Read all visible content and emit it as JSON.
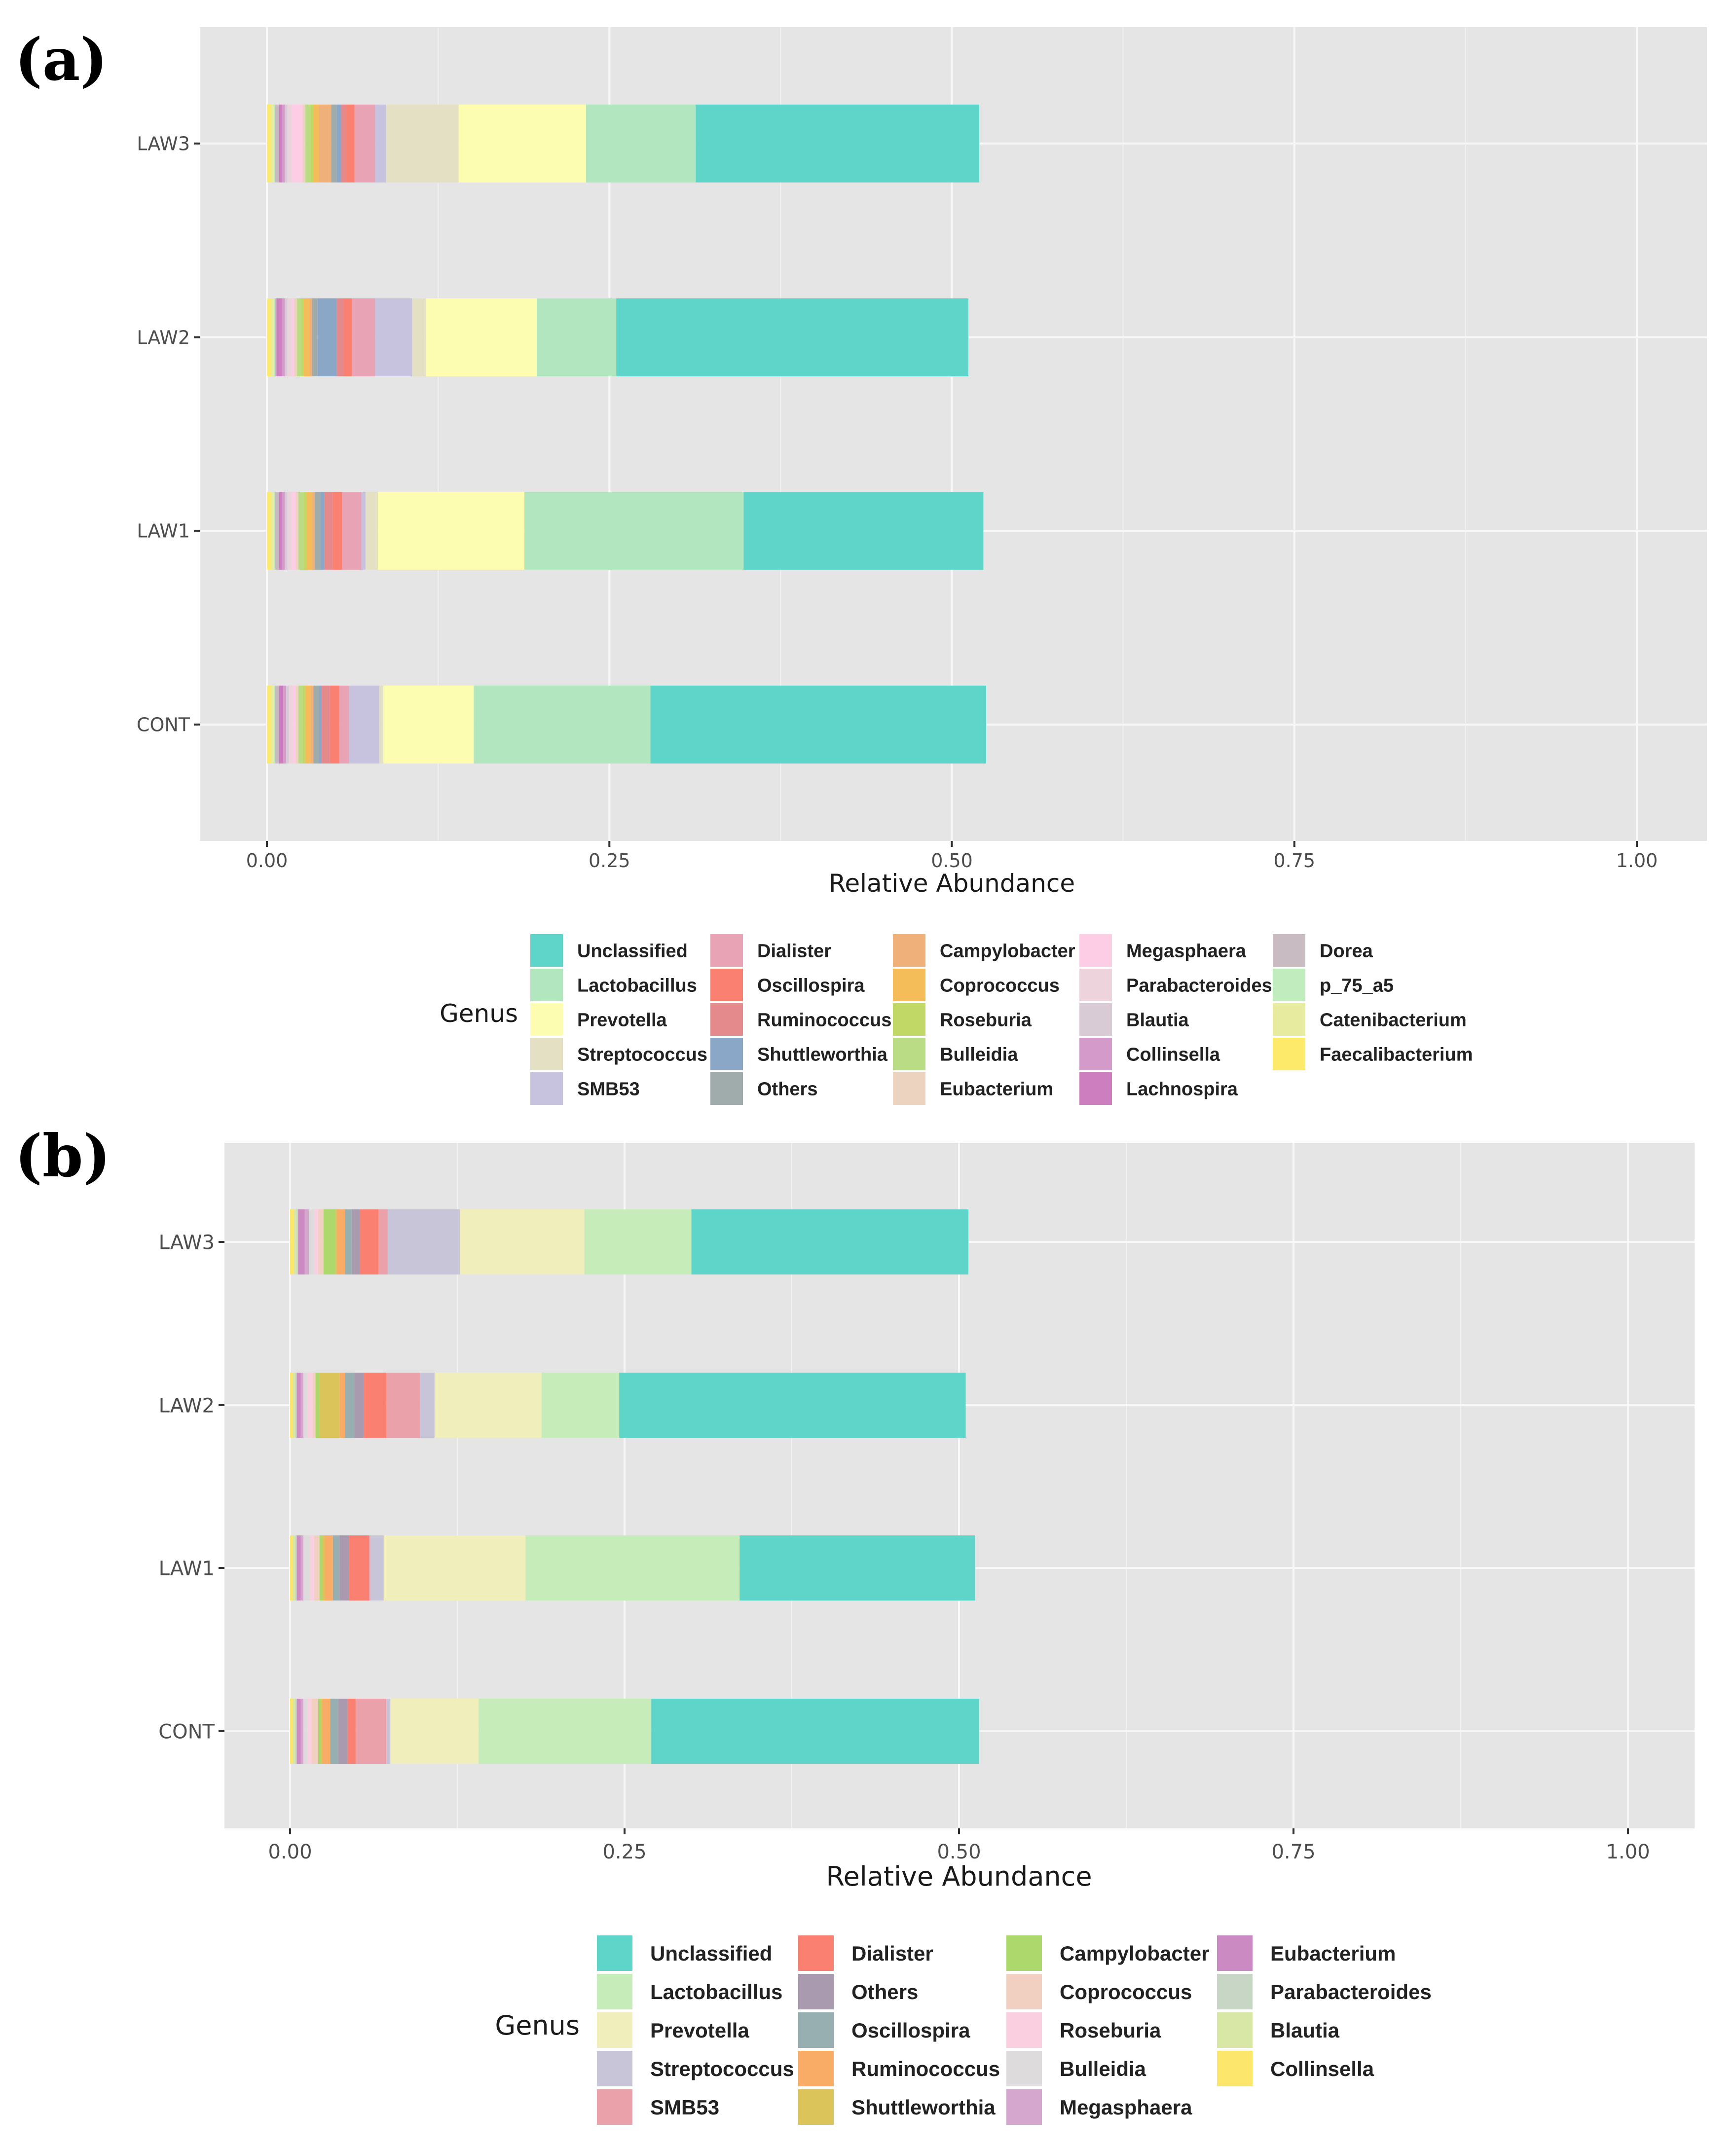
{
  "figure": {
    "panel_a_label": "(a)",
    "panel_b_label": "(b)"
  },
  "chart_data": [
    {
      "type": "bar",
      "orientation": "horizontal-stacked",
      "panel": "(a)",
      "xlabel": "Relative Abundance",
      "ylabel": "",
      "xlim": [
        0,
        1
      ],
      "x_ticks": [
        "0.00",
        "0.25",
        "0.50",
        "0.75",
        "1.00"
      ],
      "categories": [
        "LAW3",
        "LAW2",
        "LAW1",
        "CONT"
      ],
      "legend_title": "Genus",
      "legend_position": "bottom",
      "grid": true,
      "legend_entries": [
        {
          "name": "Unclassified",
          "color": "#5fd4c8"
        },
        {
          "name": "Lactobacillus",
          "color": "#b2e6bf"
        },
        {
          "name": "Prevotella",
          "color": "#fcfdb0"
        },
        {
          "name": "Streptococcus",
          "color": "#e3e0c4"
        },
        {
          "name": "SMB53",
          "color": "#c7c2dd"
        },
        {
          "name": "Dialister",
          "color": "#e8a3b4"
        },
        {
          "name": "Oscillospira",
          "color": "#fa8072"
        },
        {
          "name": "Ruminococcus",
          "color": "#e48a8c"
        },
        {
          "name": "Shuttleworthia",
          "color": "#8aa7c7"
        },
        {
          "name": "Others",
          "color": "#a0acac"
        },
        {
          "name": "Campylobacter",
          "color": "#f0b07a"
        },
        {
          "name": "Coprococcus",
          "color": "#f5bc5a"
        },
        {
          "name": "Roseburia",
          "color": "#c2d866"
        },
        {
          "name": "Bulleidia",
          "color": "#b9dc84"
        },
        {
          "name": "Eubacterium",
          "color": "#ecd3c0"
        },
        {
          "name": "Megasphaera",
          "color": "#fccde5"
        },
        {
          "name": "Parabacteroides",
          "color": "#ecd3dc"
        },
        {
          "name": "Blautia",
          "color": "#d8cbd6"
        },
        {
          "name": "Collinsella",
          "color": "#d49ac9"
        },
        {
          "name": "Lachnospira",
          "color": "#cc7ebf"
        },
        {
          "name": "Dorea",
          "color": "#c8bcc2"
        },
        {
          "name": "p_75_a5",
          "color": "#c1ecbd"
        },
        {
          "name": "Catenibacterium",
          "color": "#e7eba0"
        },
        {
          "name": "Faecalibacterium",
          "color": "#fde96a"
        }
      ],
      "series": [
        {
          "name": "Faecalibacterium",
          "values": [
            0.003,
            0.003,
            0.003,
            0.003
          ]
        },
        {
          "name": "Catenibacterium",
          "values": [
            0.002,
            0.002,
            0.002,
            0.002
          ]
        },
        {
          "name": "p_75_a5",
          "values": [
            0.001,
            0.001,
            0.001,
            0.001
          ]
        },
        {
          "name": "Dorea",
          "values": [
            0.003,
            0.001,
            0.003,
            0.003
          ]
        },
        {
          "name": "Lachnospira",
          "values": [
            0.002,
            0.004,
            0.002,
            0.003
          ]
        },
        {
          "name": "Collinsella",
          "values": [
            0.002,
            0.002,
            0.002,
            0.002
          ]
        },
        {
          "name": "Blautia",
          "values": [
            0.002,
            0.002,
            0.002,
            0.002
          ]
        },
        {
          "name": "Parabacteroides",
          "values": [
            0.003,
            0.003,
            0.003,
            0.003
          ]
        },
        {
          "name": "Megasphaera",
          "values": [
            0.008,
            0.002,
            0.003,
            0.002
          ]
        },
        {
          "name": "Eubacterium",
          "values": [
            0.002,
            0.002,
            0.002,
            0.002
          ]
        },
        {
          "name": "Bulleidia",
          "values": [
            0.004,
            0.003,
            0.004,
            0.003
          ]
        },
        {
          "name": "Roseburia",
          "values": [
            0.002,
            0.002,
            0.002,
            0.002
          ]
        },
        {
          "name": "Coprococcus",
          "values": [
            0.004,
            0.004,
            0.004,
            0.004
          ]
        },
        {
          "name": "Campylobacter",
          "values": [
            0.009,
            0.002,
            0.002,
            0.002
          ]
        },
        {
          "name": "Others",
          "values": [
            0.004,
            0.004,
            0.004,
            0.004
          ]
        },
        {
          "name": "Shuttleworthia",
          "values": [
            0.003,
            0.014,
            0.003,
            0.002
          ]
        },
        {
          "name": "Ruminococcus",
          "values": [
            0.004,
            0.005,
            0.006,
            0.006
          ]
        },
        {
          "name": "Oscillospira",
          "values": [
            0.006,
            0.006,
            0.007,
            0.007
          ]
        },
        {
          "name": "Dialister",
          "values": [
            0.015,
            0.017,
            0.014,
            0.007
          ]
        },
        {
          "name": "SMB53",
          "values": [
            0.008,
            0.027,
            0.003,
            0.022
          ]
        },
        {
          "name": "Streptococcus",
          "values": [
            0.053,
            0.01,
            0.009,
            0.003
          ]
        },
        {
          "name": "Prevotella",
          "values": [
            0.093,
            0.081,
            0.107,
            0.066
          ]
        },
        {
          "name": "Lactobacillus",
          "values": [
            0.08,
            0.058,
            0.16,
            0.129
          ]
        },
        {
          "name": "Unclassified",
          "values": [
            0.207,
            0.257,
            0.175,
            0.245
          ]
        }
      ]
    },
    {
      "type": "bar",
      "orientation": "horizontal-stacked",
      "panel": "(b)",
      "xlabel": "Relative Abundance",
      "ylabel": "",
      "xlim": [
        0,
        1
      ],
      "x_ticks": [
        "0.00",
        "0.25",
        "0.50",
        "0.75",
        "1.00"
      ],
      "categories": [
        "LAW3",
        "LAW2",
        "LAW1",
        "CONT"
      ],
      "legend_title": "Genus",
      "legend_position": "bottom",
      "grid": true,
      "legend_entries": [
        {
          "name": "Unclassified",
          "color": "#5fd4c8"
        },
        {
          "name": "Lactobacillus",
          "color": "#c6ecba"
        },
        {
          "name": "Prevotella",
          "color": "#f0eebb"
        },
        {
          "name": "Streptococcus",
          "color": "#c9c5d8"
        },
        {
          "name": "SMB53",
          "color": "#eaa1aa"
        },
        {
          "name": "Dialister",
          "color": "#fa8072"
        },
        {
          "name": "Others",
          "color": "#a99ab0"
        },
        {
          "name": "Oscillospira",
          "color": "#98afb1"
        },
        {
          "name": "Ruminococcus",
          "color": "#f9ac66"
        },
        {
          "name": "Shuttleworthia",
          "color": "#dbc45a"
        },
        {
          "name": "Campylobacter",
          "color": "#add86c"
        },
        {
          "name": "Coprococcus",
          "color": "#f1cfc1"
        },
        {
          "name": "Roseburia",
          "color": "#fad0e0"
        },
        {
          "name": "Bulleidia",
          "color": "#dedbdc"
        },
        {
          "name": "Megasphaera",
          "color": "#d5a7cf"
        },
        {
          "name": "Eubacterium",
          "color": "#cc8ac2"
        },
        {
          "name": "Parabacteroides",
          "color": "#c8d6c5"
        },
        {
          "name": "Blautia",
          "color": "#d8e6a6"
        },
        {
          "name": "Collinsella",
          "color": "#fde66c"
        }
      ],
      "series": [
        {
          "name": "Collinsella",
          "values": [
            0.003,
            0.002,
            0.002,
            0.002
          ]
        },
        {
          "name": "Blautia",
          "values": [
            0.002,
            0.002,
            0.002,
            0.002
          ]
        },
        {
          "name": "Parabacteroides",
          "values": [
            0.001,
            0.001,
            0.001,
            0.001
          ]
        },
        {
          "name": "Eubacterium",
          "values": [
            0.005,
            0.003,
            0.003,
            0.003
          ]
        },
        {
          "name": "Megasphaera",
          "values": [
            0.003,
            0.002,
            0.002,
            0.002
          ]
        },
        {
          "name": "Bulleidia",
          "values": [
            0.004,
            0.003,
            0.005,
            0.003
          ]
        },
        {
          "name": "Roseburia",
          "values": [
            0.003,
            0.004,
            0.003,
            0.003
          ]
        },
        {
          "name": "Coprococcus",
          "values": [
            0.004,
            0.002,
            0.004,
            0.005
          ]
        },
        {
          "name": "Campylobacter",
          "values": [
            0.009,
            0.003,
            0.002,
            0.002
          ]
        },
        {
          "name": "Shuttleworthia",
          "values": [
            0.001,
            0.015,
            0.002,
            0.001
          ]
        },
        {
          "name": "Ruminococcus",
          "values": [
            0.006,
            0.004,
            0.006,
            0.006
          ]
        },
        {
          "name": "Oscillospira",
          "values": [
            0.005,
            0.007,
            0.005,
            0.006
          ]
        },
        {
          "name": "Others",
          "values": [
            0.006,
            0.007,
            0.007,
            0.007
          ]
        },
        {
          "name": "Dialister",
          "values": [
            0.014,
            0.017,
            0.015,
            0.006
          ]
        },
        {
          "name": "SMB53",
          "values": [
            0.007,
            0.025,
            0.001,
            0.023
          ]
        },
        {
          "name": "Streptococcus",
          "values": [
            0.054,
            0.011,
            0.01,
            0.003
          ]
        },
        {
          "name": "Prevotella",
          "values": [
            0.093,
            0.08,
            0.106,
            0.066
          ]
        },
        {
          "name": "Lactobacillus",
          "values": [
            0.08,
            0.058,
            0.16,
            0.129
          ]
        },
        {
          "name": "Unclassified",
          "values": [
            0.207,
            0.259,
            0.176,
            0.245
          ]
        }
      ]
    }
  ]
}
